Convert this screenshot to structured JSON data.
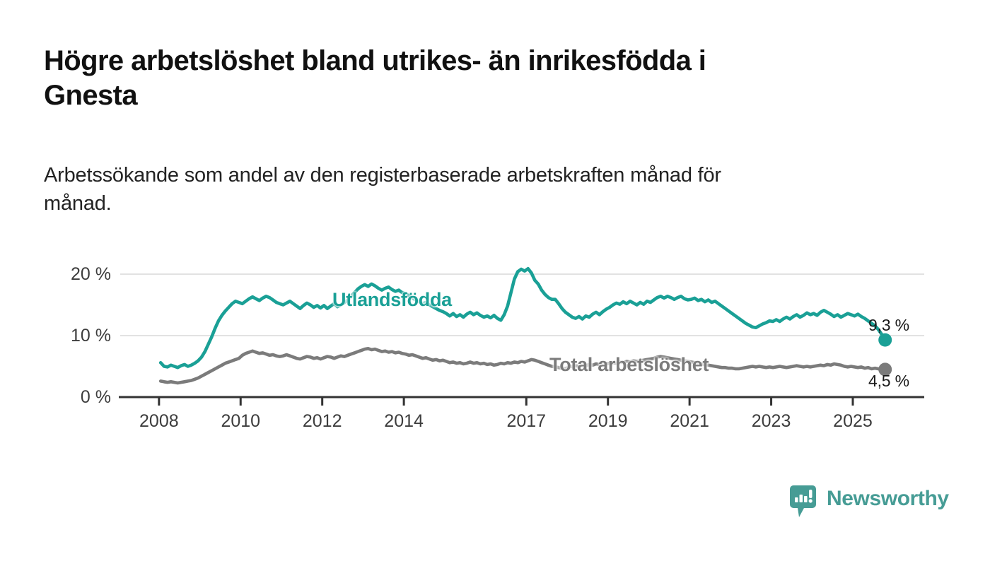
{
  "title": {
    "text": "Högre arbetslöshet bland utrikes- än inrikesfödda i Gnesta",
    "lines": [
      "Högre arbetslöshet bland utrikes- än inrikesfödda i",
      "Gnesta"
    ]
  },
  "subtitle": {
    "text": "Arbetssökande som andel av den registerbaserade arbetskraften månad för månad.",
    "lines": [
      "Arbetssökande som andel av den registerbaserade arbetskraften månad för",
      "månad."
    ]
  },
  "footer": {
    "brand": "Newsworthy",
    "logo_icon": "newsworthy-speech-bubble-bars-icon"
  },
  "colors": {
    "series_foreign_born": "#1aa096",
    "series_total": "#7b7b7b",
    "axis": "#333333",
    "grid": "#d9d9d9",
    "tick_text": "#3d3d3d",
    "title_text": "#111111",
    "brand_teal": "#469c95"
  },
  "chart_data": {
    "type": "line",
    "title": "Högre arbetslöshet bland utrikes- än inrikesfödda i Gnesta",
    "subtitle": "Arbetssökande som andel av den registerbaserade arbetskraften månad för månad.",
    "xlabel": "",
    "ylabel": "",
    "unit": "%",
    "grid": true,
    "legend_position": "inline-labels",
    "x_start": {
      "year": 2008,
      "month": 1
    },
    "x_end": {
      "year": 2025,
      "month": 10
    },
    "x_axis": {
      "range": [
        2007.05,
        2026.75
      ],
      "tick_years": [
        2008,
        2010,
        2012,
        2014,
        2017,
        2019,
        2021,
        2023,
        2025
      ]
    },
    "y_axis": {
      "range": [
        0,
        21.5
      ],
      "ticks": [
        {
          "value": 0,
          "label": "0 %"
        },
        {
          "value": 10,
          "label": "10 %"
        },
        {
          "value": 20,
          "label": "20 %"
        }
      ]
    },
    "series": [
      {
        "name": "Utlandsfödda",
        "color": "#1aa096",
        "end_value": 9.3,
        "end_label": "9,3 %",
        "values": [
          5.6,
          5.0,
          4.9,
          5.2,
          5.0,
          4.8,
          5.1,
          5.3,
          5.0,
          5.2,
          5.5,
          5.9,
          6.5,
          7.4,
          8.6,
          9.8,
          11.2,
          12.4,
          13.3,
          14.0,
          14.6,
          15.2,
          15.6,
          15.4,
          15.2,
          15.6,
          16.0,
          16.3,
          16.0,
          15.7,
          16.1,
          16.4,
          16.2,
          15.8,
          15.4,
          15.2,
          15.0,
          15.3,
          15.6,
          15.2,
          14.8,
          14.4,
          14.9,
          15.3,
          15.0,
          14.6,
          14.9,
          14.5,
          14.9,
          14.4,
          14.8,
          15.2,
          14.7,
          15.0,
          15.4,
          15.8,
          16.4,
          17.0,
          17.6,
          18.0,
          18.3,
          18.0,
          18.4,
          18.1,
          17.7,
          17.4,
          17.7,
          17.9,
          17.5,
          17.2,
          17.4,
          17.0,
          16.8,
          16.5,
          16.1,
          15.8,
          15.5,
          15.2,
          15.4,
          15.0,
          14.7,
          14.4,
          14.1,
          13.9,
          13.6,
          13.2,
          13.6,
          13.1,
          13.4,
          13.0,
          13.5,
          13.8,
          13.4,
          13.7,
          13.3,
          13.0,
          13.2,
          12.9,
          13.3,
          12.8,
          12.5,
          13.4,
          14.8,
          17.0,
          19.2,
          20.4,
          20.8,
          20.5,
          20.9,
          20.2,
          19.0,
          18.4,
          17.4,
          16.7,
          16.2,
          15.9,
          15.9,
          15.2,
          14.4,
          13.8,
          13.4,
          13.0,
          12.8,
          13.1,
          12.7,
          13.2,
          13.0,
          13.5,
          13.8,
          13.4,
          13.9,
          14.3,
          14.6,
          15.0,
          15.3,
          15.1,
          15.5,
          15.2,
          15.6,
          15.3,
          15.0,
          15.4,
          15.1,
          15.6,
          15.4,
          15.8,
          16.2,
          16.4,
          16.1,
          16.4,
          16.2,
          15.9,
          16.2,
          16.4,
          16.0,
          15.8,
          15.9,
          16.1,
          15.7,
          15.9,
          15.5,
          15.8,
          15.4,
          15.6,
          15.2,
          14.8,
          14.4,
          14.0,
          13.6,
          13.2,
          12.8,
          12.4,
          12.0,
          11.7,
          11.4,
          11.3,
          11.6,
          11.9,
          12.1,
          12.4,
          12.3,
          12.6,
          12.3,
          12.7,
          13.0,
          12.7,
          13.1,
          13.4,
          13.0,
          13.3,
          13.7,
          13.4,
          13.6,
          13.3,
          13.8,
          14.1,
          13.8,
          13.5,
          13.1,
          13.4,
          13.0,
          13.3,
          13.6,
          13.4,
          13.2,
          13.5,
          13.1,
          12.8,
          12.4,
          12.0,
          11.6,
          11.0,
          10.2,
          9.3
        ]
      },
      {
        "name": "Total arbetslöshet",
        "color": "#7b7b7b",
        "end_value": 4.5,
        "end_label": "4,5 %",
        "values": [
          2.6,
          2.5,
          2.4,
          2.5,
          2.4,
          2.3,
          2.4,
          2.5,
          2.6,
          2.7,
          2.9,
          3.1,
          3.4,
          3.7,
          4.0,
          4.3,
          4.6,
          4.9,
          5.2,
          5.5,
          5.7,
          5.9,
          6.1,
          6.3,
          6.8,
          7.1,
          7.3,
          7.5,
          7.3,
          7.1,
          7.2,
          7.0,
          6.8,
          6.9,
          6.7,
          6.6,
          6.7,
          6.9,
          6.7,
          6.5,
          6.3,
          6.2,
          6.4,
          6.6,
          6.5,
          6.3,
          6.4,
          6.2,
          6.4,
          6.6,
          6.5,
          6.3,
          6.5,
          6.7,
          6.6,
          6.8,
          7.0,
          7.2,
          7.4,
          7.6,
          7.8,
          7.9,
          7.7,
          7.8,
          7.6,
          7.4,
          7.5,
          7.3,
          7.4,
          7.2,
          7.3,
          7.1,
          7.0,
          6.8,
          6.9,
          6.7,
          6.5,
          6.3,
          6.4,
          6.2,
          6.0,
          6.1,
          5.9,
          6.0,
          5.8,
          5.6,
          5.7,
          5.5,
          5.6,
          5.4,
          5.5,
          5.7,
          5.5,
          5.6,
          5.4,
          5.5,
          5.3,
          5.4,
          5.2,
          5.3,
          5.5,
          5.4,
          5.6,
          5.5,
          5.7,
          5.6,
          5.8,
          5.7,
          5.9,
          6.1,
          6.0,
          5.8,
          5.6,
          5.4,
          5.2,
          5.0,
          4.9,
          4.8,
          4.7,
          4.6,
          4.9,
          5.0,
          5.1,
          5.0,
          5.2,
          5.1,
          5.3,
          5.2,
          5.4,
          5.3,
          5.5,
          5.4,
          5.5,
          5.6,
          5.5,
          5.7,
          5.6,
          5.8,
          5.7,
          5.9,
          5.8,
          5.9,
          6.0,
          6.1,
          6.2,
          6.3,
          6.5,
          6.6,
          6.5,
          6.4,
          6.3,
          6.2,
          6.1,
          6.0,
          5.9,
          5.8,
          5.7,
          5.6,
          5.5,
          5.4,
          5.3,
          5.2,
          5.1,
          5.0,
          4.9,
          4.8,
          4.8,
          4.7,
          4.7,
          4.6,
          4.6,
          4.7,
          4.8,
          4.9,
          5.0,
          4.9,
          5.0,
          4.9,
          4.8,
          4.9,
          4.8,
          4.9,
          5.0,
          4.9,
          4.8,
          4.9,
          5.0,
          5.1,
          5.0,
          4.9,
          5.0,
          4.9,
          5.0,
          5.1,
          5.2,
          5.1,
          5.3,
          5.2,
          5.4,
          5.3,
          5.2,
          5.0,
          4.9,
          5.0,
          4.9,
          4.8,
          4.9,
          4.7,
          4.8,
          4.6,
          4.7,
          4.6,
          4.5,
          4.5
        ]
      }
    ]
  }
}
